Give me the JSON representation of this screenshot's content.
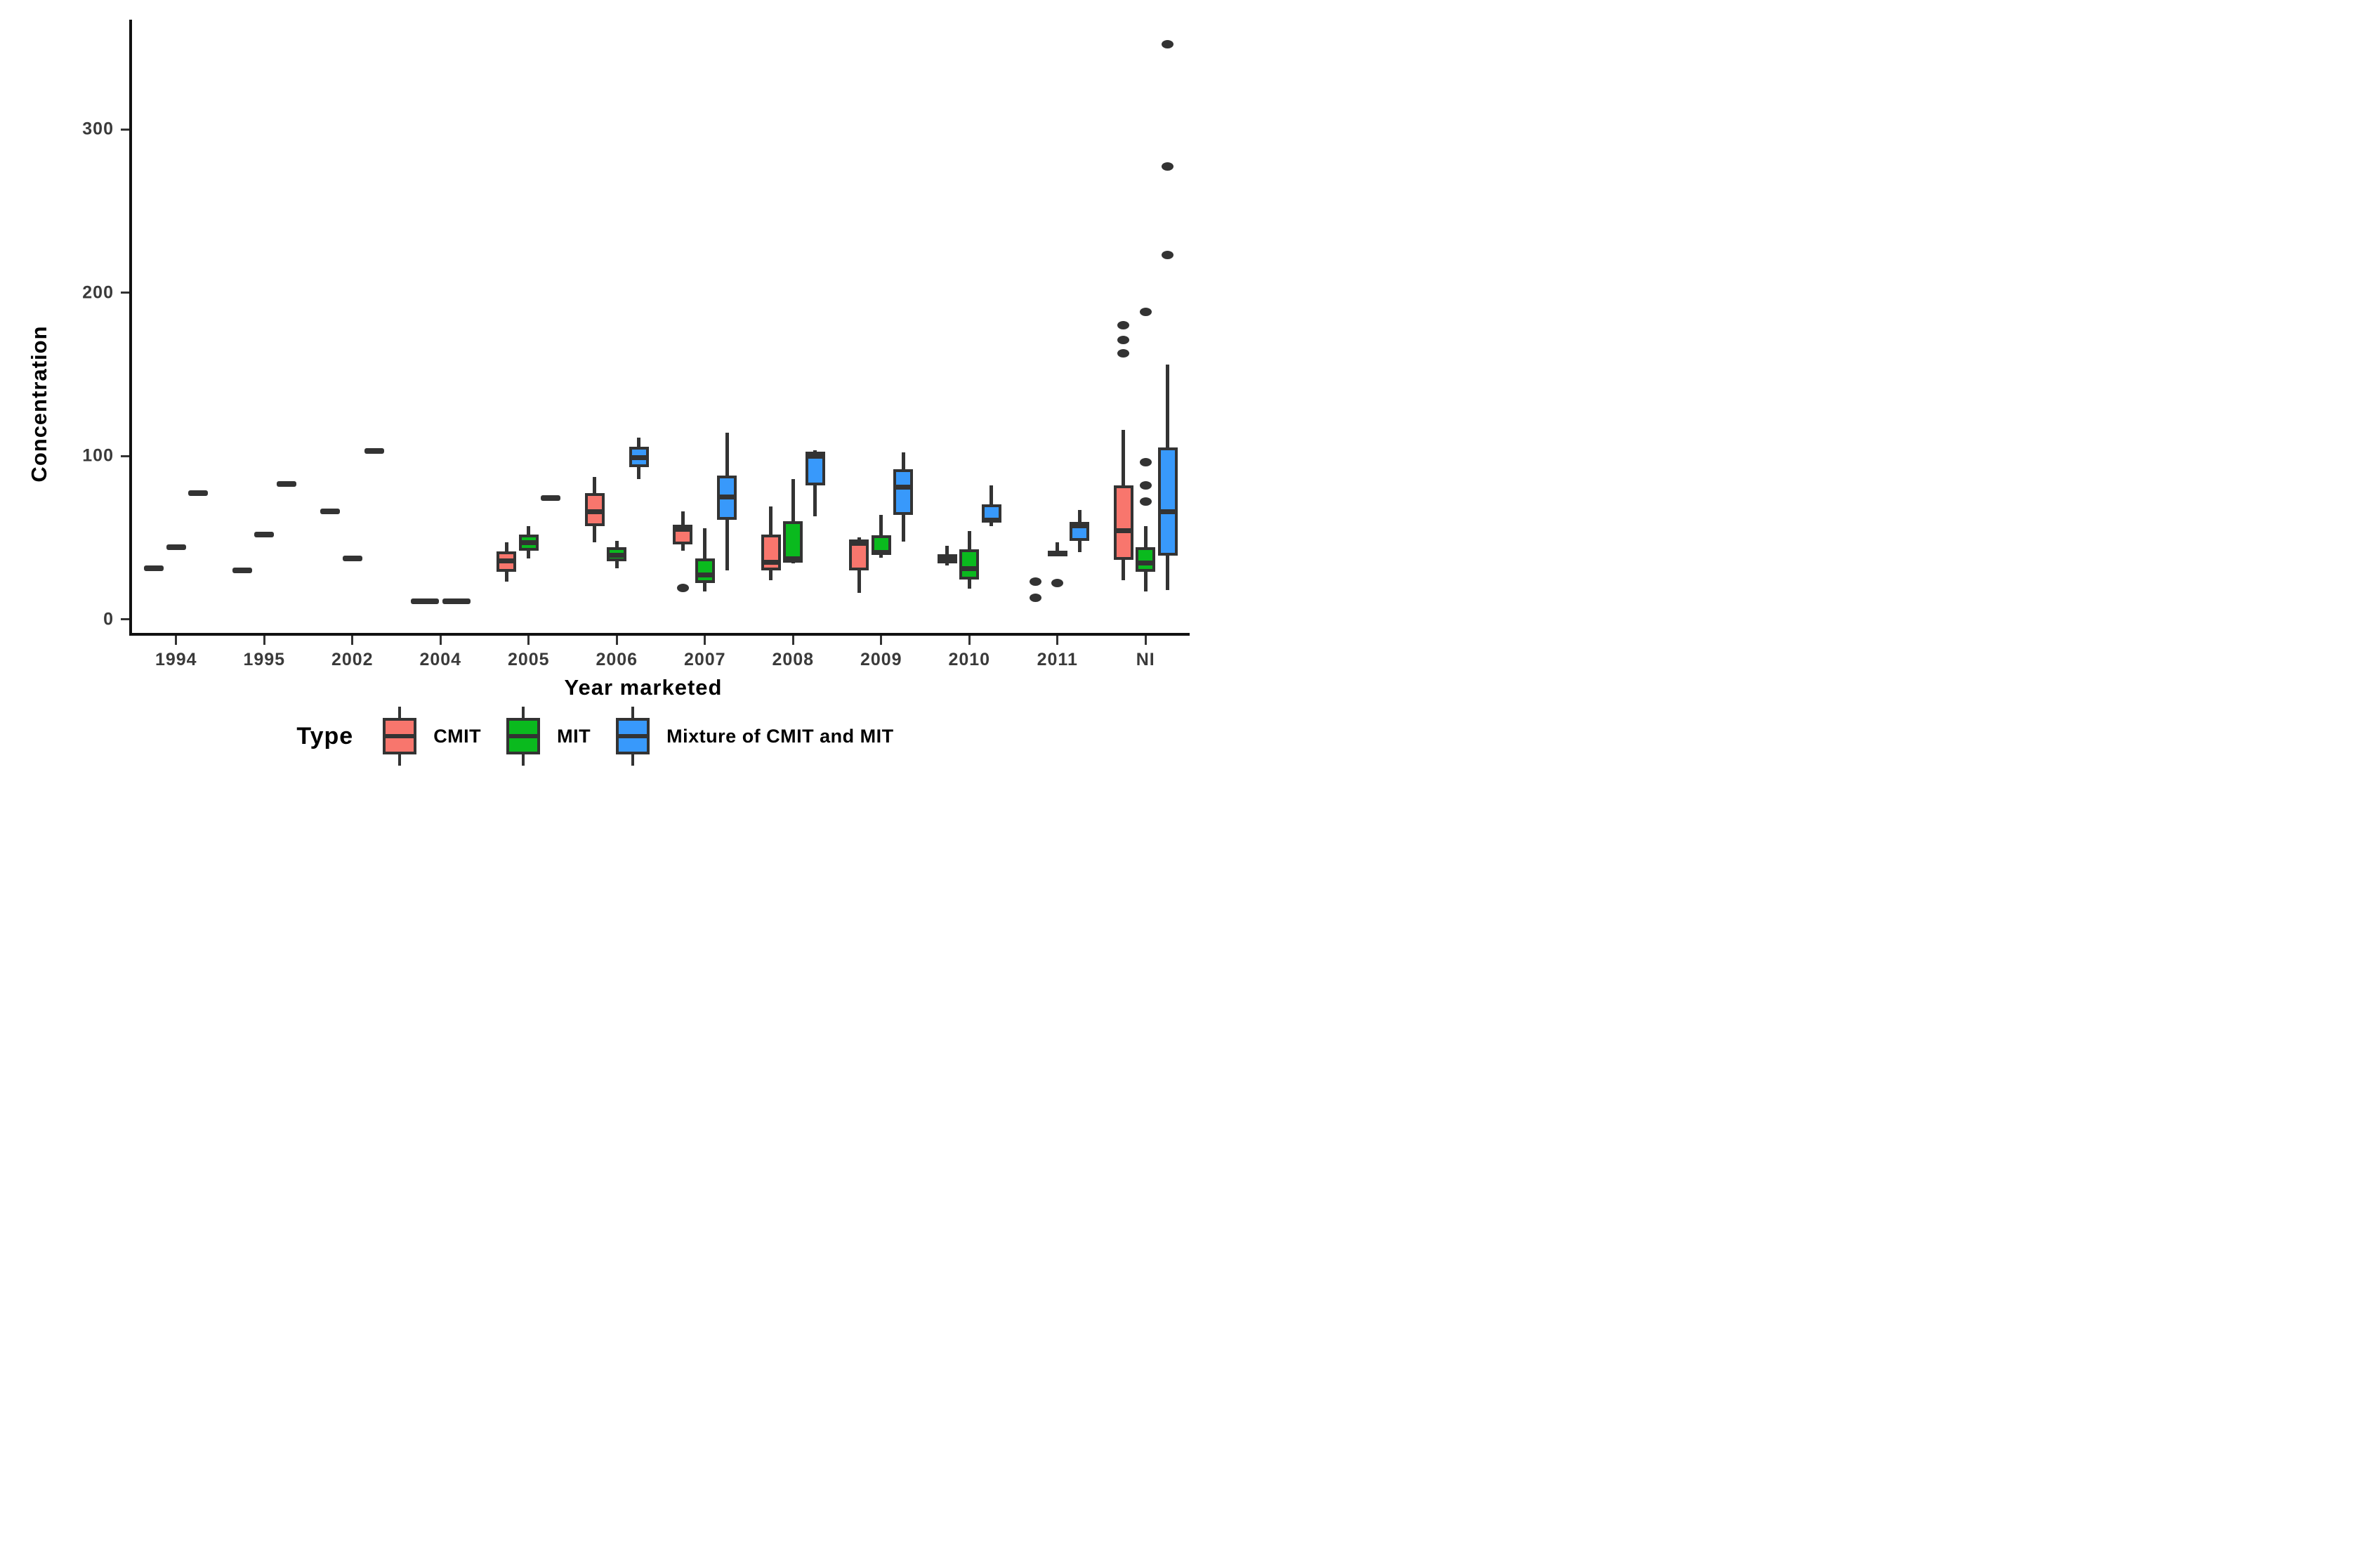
{
  "chart_data": {
    "type": "boxplot",
    "title": "",
    "xlabel": "Year marketed",
    "ylabel": "Concentration",
    "legend_title": "Type",
    "legend_position": "bottom",
    "grid": false,
    "y_ticks": [
      0,
      100,
      200,
      300
    ],
    "ylim": [
      -8,
      368
    ],
    "categories": [
      "1994",
      "1995",
      "2002",
      "2004",
      "2005",
      "2006",
      "2007",
      "2008",
      "2009",
      "2010",
      "2011",
      "NI"
    ],
    "series": [
      {
        "key": "CMIT",
        "label": "CMIT",
        "color": "#F8766D"
      },
      {
        "key": "MIT",
        "label": "MIT",
        "color": "#0ABA1E"
      },
      {
        "key": "MIX",
        "label": "Mixture of CMIT and MIT",
        "color": "#3899FB"
      }
    ],
    "boxes": [
      {
        "category": "1994",
        "type": "CMIT",
        "kind": "flat",
        "median": 31
      },
      {
        "category": "1994",
        "type": "MIT",
        "kind": "flat",
        "median": 44
      },
      {
        "category": "1994",
        "type": "MIX",
        "kind": "flat",
        "median": 77
      },
      {
        "category": "1995",
        "type": "CMIT",
        "kind": "flat",
        "median": 30
      },
      {
        "category": "1995",
        "type": "MIT",
        "kind": "flat",
        "median": 52
      },
      {
        "category": "1995",
        "type": "MIX",
        "kind": "flat",
        "median": 83
      },
      {
        "category": "2002",
        "type": "CMIT",
        "kind": "flat",
        "median": 66
      },
      {
        "category": "2002",
        "type": "MIT",
        "kind": "flat",
        "median": 37
      },
      {
        "category": "2002",
        "type": "MIX",
        "kind": "flat",
        "median": 103
      },
      {
        "category": "2004",
        "type": "CMIT",
        "kind": "flat",
        "median": 11
      },
      {
        "category": "2004",
        "type": "MIT",
        "kind": "flat",
        "median": 11
      },
      {
        "category": "2005",
        "type": "CMIT",
        "kind": "box",
        "low": 23,
        "q1": 29,
        "median": 35.5,
        "q3": 41.5,
        "high": 47
      },
      {
        "category": "2005",
        "type": "MIT",
        "kind": "box",
        "low": 37,
        "q1": 42,
        "median": 47,
        "q3": 52,
        "high": 57
      },
      {
        "category": "2005",
        "type": "MIX",
        "kind": "flat",
        "median": 74
      },
      {
        "category": "2006",
        "type": "CMIT",
        "kind": "box",
        "low": 47,
        "q1": 57,
        "median": 66,
        "q3": 77,
        "high": 87
      },
      {
        "category": "2006",
        "type": "MIT",
        "kind": "box",
        "low": 31,
        "q1": 35.5,
        "median": 39,
        "q3": 44,
        "high": 48
      },
      {
        "category": "2006",
        "type": "MIX",
        "kind": "box",
        "low": 86,
        "q1": 93,
        "median": 99,
        "q3": 105.5,
        "high": 111
      },
      {
        "category": "2007",
        "type": "CMIT",
        "kind": "box",
        "low": 42,
        "q1": 46,
        "median": 55,
        "q3": 58,
        "high": 66,
        "outliers": [
          19
        ]
      },
      {
        "category": "2007",
        "type": "MIT",
        "kind": "box",
        "low": 17,
        "q1": 22,
        "median": 27,
        "q3": 37,
        "high": 55.5
      },
      {
        "category": "2007",
        "type": "MIX",
        "kind": "box",
        "low": 30,
        "q1": 61,
        "median": 75,
        "q3": 88,
        "high": 114
      },
      {
        "category": "2008",
        "type": "CMIT",
        "kind": "box",
        "low": 24,
        "q1": 30,
        "median": 35,
        "q3": 52,
        "high": 69
      },
      {
        "category": "2008",
        "type": "MIT",
        "kind": "box",
        "low": 34,
        "q1": 34.5,
        "median": 37,
        "q3": 60,
        "high": 86
      },
      {
        "category": "2008",
        "type": "MIX",
        "kind": "box",
        "low": 63,
        "q1": 82,
        "median": 100,
        "q3": 102.5,
        "high": 103.5
      },
      {
        "category": "2009",
        "type": "CMIT",
        "kind": "box",
        "low": 16,
        "q1": 30,
        "median": 46.5,
        "q3": 49,
        "high": 50
      },
      {
        "category": "2009",
        "type": "MIT",
        "kind": "box",
        "low": 37.5,
        "q1": 39.5,
        "median": 41,
        "q3": 51.5,
        "high": 64
      },
      {
        "category": "2009",
        "type": "MIX",
        "kind": "box",
        "low": 47.5,
        "q1": 64,
        "median": 81,
        "q3": 92,
        "high": 102
      },
      {
        "category": "2010",
        "type": "CMIT",
        "kind": "box",
        "low": 33,
        "q1": 34,
        "median": 37,
        "q3": 40,
        "high": 45
      },
      {
        "category": "2010",
        "type": "MIT",
        "kind": "box",
        "low": 18.5,
        "q1": 24.5,
        "median": 31,
        "q3": 43,
        "high": 54
      },
      {
        "category": "2010",
        "type": "MIX",
        "kind": "box",
        "low": 57,
        "q1": 59.5,
        "median": 60.5,
        "q3": 70.5,
        "high": 82
      },
      {
        "category": "2011",
        "type": "CMIT",
        "kind": "points",
        "outliers": [
          23,
          13
        ]
      },
      {
        "category": "2011",
        "type": "MIT",
        "kind": "box",
        "low": 38.5,
        "q1": 39,
        "median": 40.5,
        "q3": 42,
        "high": 47,
        "outliers": [
          22
        ]
      },
      {
        "category": "2011",
        "type": "MIX",
        "kind": "box",
        "low": 41,
        "q1": 48,
        "median": 57,
        "q3": 59.5,
        "high": 67
      },
      {
        "category": "NI",
        "type": "CMIT",
        "kind": "box",
        "low": 24,
        "q1": 36.5,
        "median": 54,
        "q3": 82,
        "high": 116,
        "outliers": [
          163,
          171,
          180
        ]
      },
      {
        "category": "NI",
        "type": "MIT",
        "kind": "box",
        "low": 17,
        "q1": 29,
        "median": 34.5,
        "q3": 44,
        "high": 57,
        "outliers": [
          72,
          82,
          96,
          188
        ]
      },
      {
        "category": "NI",
        "type": "MIX",
        "kind": "box",
        "low": 18,
        "q1": 39,
        "median": 66,
        "q3": 105,
        "high": 156,
        "outliers": [
          223,
          277,
          352
        ]
      }
    ]
  }
}
